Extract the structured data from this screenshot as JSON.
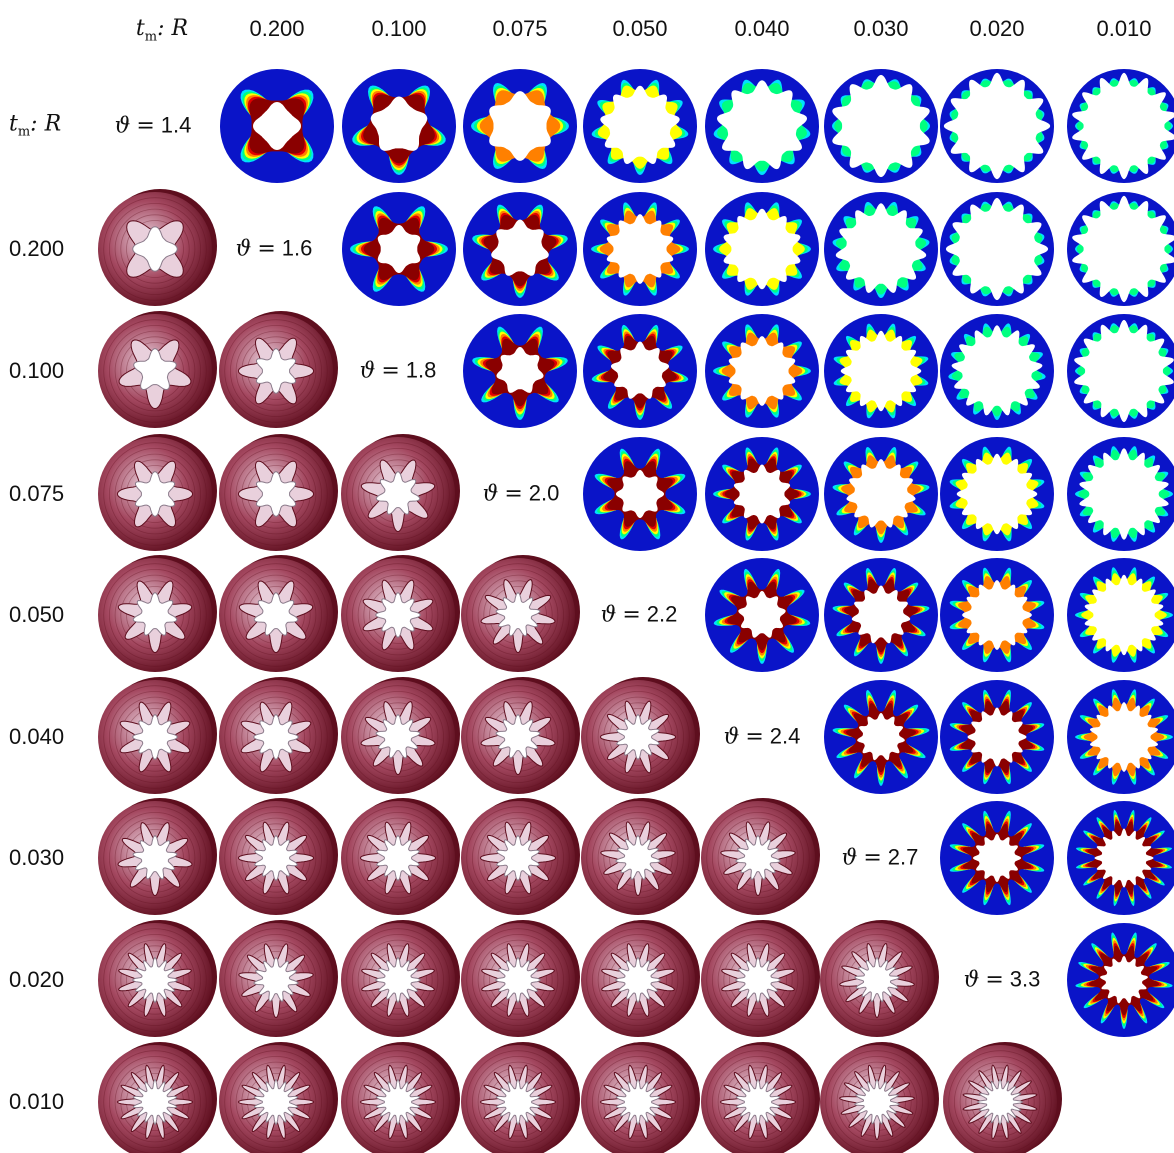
{
  "axis_label": {
    "symbol": "t",
    "subscript": "m",
    "ratio": ": R"
  },
  "column_labels": [
    "0.200",
    "0.100",
    "0.075",
    "0.050",
    "0.040",
    "0.030",
    "0.020",
    "0.010"
  ],
  "row_labels": [
    "0.200",
    "0.100",
    "0.075",
    "0.050",
    "0.040",
    "0.030",
    "0.020",
    "0.010"
  ],
  "theta_labels": [
    {
      "symbol": "ϑ",
      "eq": "=",
      "value": "1.4"
    },
    {
      "symbol": "ϑ",
      "eq": "=",
      "value": "1.6"
    },
    {
      "symbol": "ϑ",
      "eq": "=",
      "value": "1.8"
    },
    {
      "symbol": "ϑ",
      "eq": "=",
      "value": "2.0"
    },
    {
      "symbol": "ϑ",
      "eq": "=",
      "value": "2.2"
    },
    {
      "symbol": "ϑ",
      "eq": "=",
      "value": "2.4"
    },
    {
      "symbol": "ϑ",
      "eq": "=",
      "value": "2.7"
    },
    {
      "symbol": "ϑ",
      "eq": "=",
      "value": "3.3"
    }
  ],
  "contour_lobes": [
    [
      4,
      5,
      6,
      9,
      9,
      10,
      12,
      14
    ],
    [
      null,
      6,
      7,
      10,
      10,
      11,
      12,
      14
    ],
    [
      null,
      null,
      7,
      9,
      10,
      12,
      13,
      14
    ],
    [
      null,
      null,
      null,
      8,
      10,
      11,
      12,
      14
    ],
    [
      null,
      null,
      null,
      null,
      9,
      11,
      12,
      14
    ],
    [
      null,
      null,
      null,
      null,
      null,
      11,
      12,
      14
    ],
    [
      null,
      null,
      null,
      null,
      null,
      null,
      12,
      16
    ],
    [
      null,
      null,
      null,
      null,
      null,
      null,
      null,
      13
    ]
  ],
  "mesh_lobes": [
    [
      4
    ],
    [
      5,
      6
    ],
    [
      6,
      6,
      7
    ],
    [
      7,
      7,
      8,
      9
    ],
    [
      8,
      8,
      9,
      9,
      10
    ],
    [
      9,
      10,
      10,
      10,
      11,
      11
    ],
    [
      12,
      11,
      12,
      12,
      12,
      12,
      13
    ],
    [
      14,
      14,
      14,
      14,
      14,
      14,
      15,
      16
    ]
  ],
  "colors": {
    "contour_background": "#0a14c8",
    "contour_ramp": [
      "#00e0ff",
      "#00ff80",
      "#ffff00",
      "#ff8000",
      "#e00000",
      "#8a0000"
    ],
    "mesh_dark": "#5e0e1e",
    "mesh_mid": "#a44860",
    "mesh_light": "#e9d0dc",
    "mesh_floor": "#8a7a8a"
  }
}
